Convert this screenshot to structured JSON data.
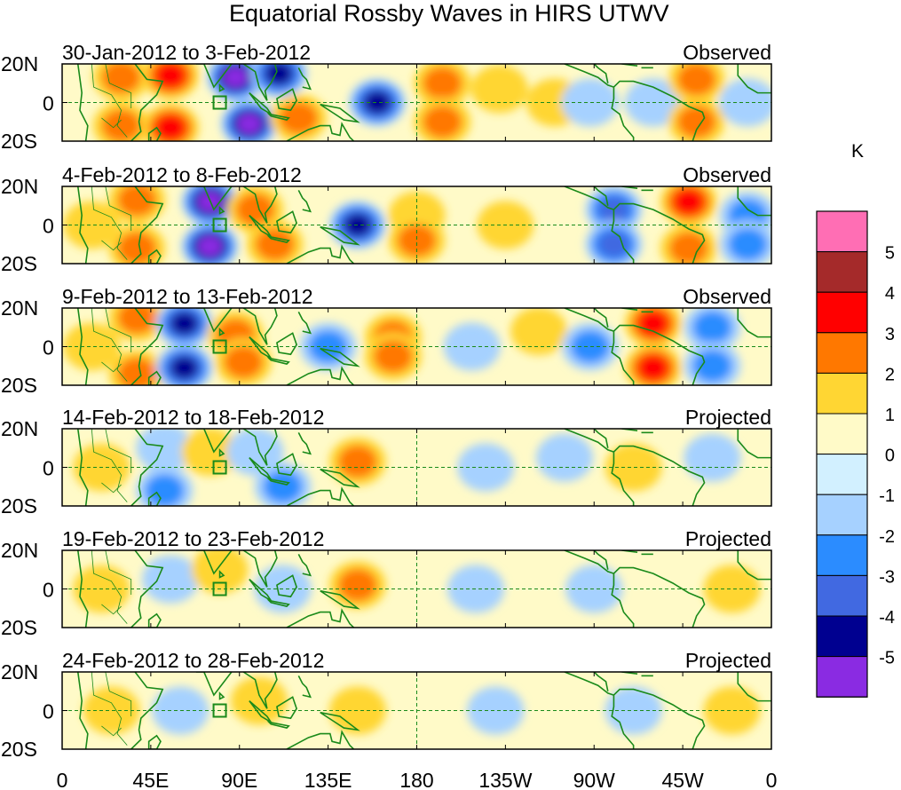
{
  "chart_data": {
    "type": "heatmap",
    "title": "Equatorial Rossby Waves in HIRS UTWV",
    "colorbar": {
      "unit": "K",
      "tick_labels": [
        "5",
        "4",
        "3",
        "2",
        "1",
        "0",
        "-1",
        "-2",
        "-3",
        "-4",
        "-5"
      ],
      "colors": [
        "#ff6eb4",
        "#a52a2a",
        "#ff0000",
        "#ff7800",
        "#ffd633",
        "#fffac8",
        "#d2f0ff",
        "#a6d1ff",
        "#2b8cff",
        "#4169e1",
        "#000090",
        "#8a2be2"
      ]
    },
    "x_axis": {
      "tick_labels": [
        "0",
        "45E",
        "90E",
        "135E",
        "180",
        "135W",
        "90W",
        "45W",
        "0"
      ],
      "range_deg_east": [
        0,
        360
      ]
    },
    "y_axis": {
      "tick_labels": [
        "20N",
        "0",
        "20S"
      ],
      "range_deg": [
        -20,
        20
      ]
    },
    "panels": [
      {
        "date_range": "30-Jan-2012 to 3-Feb-2012",
        "status": "Observed",
        "anomalies": [
          {
            "lon": 30,
            "lat": 13,
            "value": 2
          },
          {
            "lon": 30,
            "lat": -12,
            "value": 2
          },
          {
            "lon": 55,
            "lat": 14,
            "value": 3
          },
          {
            "lon": 55,
            "lat": -13,
            "value": 3
          },
          {
            "lon": 88,
            "lat": 13,
            "value": -5
          },
          {
            "lon": 95,
            "lat": -11,
            "value": -5
          },
          {
            "lon": 110,
            "lat": 15,
            "value": -4
          },
          {
            "lon": 120,
            "lat": -8,
            "value": 2
          },
          {
            "lon": 160,
            "lat": 0,
            "value": -4
          },
          {
            "lon": 193,
            "lat": 10,
            "value": 2
          },
          {
            "lon": 193,
            "lat": -10,
            "value": 2
          },
          {
            "lon": 222,
            "lat": 7,
            "value": 1
          },
          {
            "lon": 250,
            "lat": 0,
            "value": 1
          },
          {
            "lon": 268,
            "lat": 0,
            "value": -1
          },
          {
            "lon": 300,
            "lat": 0,
            "value": -1
          },
          {
            "lon": 322,
            "lat": 12,
            "value": 2
          },
          {
            "lon": 322,
            "lat": -10,
            "value": 2
          },
          {
            "lon": 348,
            "lat": 0,
            "value": -1
          }
        ]
      },
      {
        "date_range": "4-Feb-2012 to 8-Feb-2012",
        "status": "Observed",
        "anomalies": [
          {
            "lon": 15,
            "lat": 0,
            "value": 1
          },
          {
            "lon": 38,
            "lat": 13,
            "value": 2
          },
          {
            "lon": 38,
            "lat": -12,
            "value": 2
          },
          {
            "lon": 75,
            "lat": 12,
            "value": -5
          },
          {
            "lon": 75,
            "lat": -11,
            "value": -5
          },
          {
            "lon": 98,
            "lat": 8,
            "value": 2
          },
          {
            "lon": 108,
            "lat": -10,
            "value": 2
          },
          {
            "lon": 150,
            "lat": 0,
            "value": -4
          },
          {
            "lon": 180,
            "lat": 5,
            "value": 1
          },
          {
            "lon": 180,
            "lat": -8,
            "value": 2
          },
          {
            "lon": 225,
            "lat": 0,
            "value": 1
          },
          {
            "lon": 280,
            "lat": 8,
            "value": -3
          },
          {
            "lon": 280,
            "lat": -10,
            "value": -3
          },
          {
            "lon": 318,
            "lat": 12,
            "value": 3
          },
          {
            "lon": 318,
            "lat": -12,
            "value": 2
          },
          {
            "lon": 348,
            "lat": 5,
            "value": -2
          },
          {
            "lon": 348,
            "lat": -10,
            "value": -2
          }
        ]
      },
      {
        "date_range": "9-Feb-2012 to 13-Feb-2012",
        "status": "Observed",
        "anomalies": [
          {
            "lon": 15,
            "lat": 0,
            "value": 1
          },
          {
            "lon": 38,
            "lat": 15,
            "value": 2
          },
          {
            "lon": 38,
            "lat": -14,
            "value": 2
          },
          {
            "lon": 62,
            "lat": 12,
            "value": -4
          },
          {
            "lon": 62,
            "lat": -11,
            "value": -4
          },
          {
            "lon": 88,
            "lat": 6,
            "value": 2
          },
          {
            "lon": 92,
            "lat": -8,
            "value": 2
          },
          {
            "lon": 135,
            "lat": 0,
            "value": -2
          },
          {
            "lon": 168,
            "lat": 5,
            "value": 2
          },
          {
            "lon": 168,
            "lat": -5,
            "value": 2
          },
          {
            "lon": 208,
            "lat": 0,
            "value": -1
          },
          {
            "lon": 242,
            "lat": 8,
            "value": 1
          },
          {
            "lon": 268,
            "lat": 0,
            "value": -2
          },
          {
            "lon": 300,
            "lat": 12,
            "value": 3
          },
          {
            "lon": 300,
            "lat": -11,
            "value": 3
          },
          {
            "lon": 330,
            "lat": 10,
            "value": -2
          },
          {
            "lon": 330,
            "lat": -10,
            "value": -2
          }
        ]
      },
      {
        "date_range": "14-Feb-2012 to 18-Feb-2012",
        "status": "Projected",
        "anomalies": [
          {
            "lon": 20,
            "lat": 0,
            "value": 1
          },
          {
            "lon": 52,
            "lat": 10,
            "value": -1
          },
          {
            "lon": 52,
            "lat": -12,
            "value": -2
          },
          {
            "lon": 75,
            "lat": 8,
            "value": 1
          },
          {
            "lon": 98,
            "lat": 8,
            "value": -1
          },
          {
            "lon": 112,
            "lat": -10,
            "value": -2
          },
          {
            "lon": 150,
            "lat": 3,
            "value": 2
          },
          {
            "lon": 215,
            "lat": 0,
            "value": -1
          },
          {
            "lon": 255,
            "lat": 5,
            "value": -1
          },
          {
            "lon": 290,
            "lat": 0,
            "value": 1
          },
          {
            "lon": 330,
            "lat": 5,
            "value": -1
          }
        ]
      },
      {
        "date_range": "19-Feb-2012 to 23-Feb-2012",
        "status": "Projected",
        "anomalies": [
          {
            "lon": 20,
            "lat": 0,
            "value": 1
          },
          {
            "lon": 55,
            "lat": 5,
            "value": -1
          },
          {
            "lon": 80,
            "lat": 10,
            "value": 1
          },
          {
            "lon": 112,
            "lat": 0,
            "value": -1
          },
          {
            "lon": 150,
            "lat": 2,
            "value": 2
          },
          {
            "lon": 210,
            "lat": 0,
            "value": -1
          },
          {
            "lon": 270,
            "lat": 0,
            "value": -1
          },
          {
            "lon": 340,
            "lat": 0,
            "value": 1
          }
        ]
      },
      {
        "date_range": "24-Feb-2012 to 28-Feb-2012",
        "status": "Projected",
        "anomalies": [
          {
            "lon": 25,
            "lat": 0,
            "value": 1
          },
          {
            "lon": 60,
            "lat": 0,
            "value": -1
          },
          {
            "lon": 100,
            "lat": 5,
            "value": 1
          },
          {
            "lon": 150,
            "lat": 0,
            "value": 1
          },
          {
            "lon": 220,
            "lat": 0,
            "value": -1
          },
          {
            "lon": 290,
            "lat": 0,
            "value": -1
          },
          {
            "lon": 340,
            "lat": 0,
            "value": 1
          }
        ]
      }
    ]
  }
}
